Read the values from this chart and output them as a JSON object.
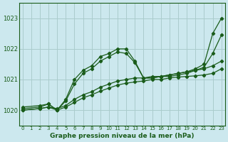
{
  "bg_color": "#cce8ee",
  "grid_color": "#aacccc",
  "line_color": "#1a5c1a",
  "xlabel": "Graphe pression niveau de la mer (hPa)",
  "xlim": [
    -0.4,
    23.4
  ],
  "ylim": [
    1019.5,
    1023.5
  ],
  "yticks": [
    1020,
    1021,
    1022,
    1023
  ],
  "xticks": [
    0,
    1,
    2,
    3,
    4,
    5,
    6,
    7,
    8,
    9,
    10,
    11,
    12,
    13,
    14,
    15,
    16,
    17,
    18,
    19,
    20,
    21,
    22,
    23
  ],
  "series": [
    {
      "x": [
        0,
        2,
        3,
        4,
        5,
        6,
        7,
        8,
        9,
        10,
        11,
        12,
        13,
        14,
        15,
        16,
        17,
        18,
        19,
        20,
        21,
        22,
        23
      ],
      "y": [
        1020.1,
        1020.15,
        1020.2,
        1020.0,
        1020.35,
        1021.0,
        1021.3,
        1021.45,
        1021.75,
        1021.85,
        1022.0,
        1022.0,
        1021.6,
        1021.05,
        1021.05,
        1021.1,
        1021.15,
        1021.2,
        1021.25,
        1021.35,
        1021.5,
        1022.5,
        1023.0
      ]
    },
    {
      "x": [
        0,
        2,
        3,
        4,
        5,
        6,
        7,
        8,
        9,
        10,
        11,
        12,
        13,
        14,
        15,
        16,
        17,
        18,
        19,
        20,
        21,
        22,
        23
      ],
      "y": [
        1020.05,
        1020.1,
        1020.2,
        1020.0,
        1020.3,
        1020.85,
        1021.2,
        1021.35,
        1021.6,
        1021.75,
        1021.9,
        1021.85,
        1021.55,
        1021.05,
        1021.05,
        1021.1,
        1021.1,
        1021.15,
        1021.2,
        1021.3,
        1021.4,
        1021.85,
        1022.45
      ]
    },
    {
      "x": [
        0,
        2,
        3,
        4,
        5,
        6,
        7,
        8,
        9,
        10,
        11,
        12,
        13,
        14,
        15,
        16,
        17,
        18,
        19,
        20,
        21,
        22,
        23
      ],
      "y": [
        1020.0,
        1020.05,
        1020.1,
        1020.05,
        1020.15,
        1020.35,
        1020.5,
        1020.6,
        1020.75,
        1020.85,
        1020.95,
        1021.0,
        1021.05,
        1021.05,
        1021.1,
        1021.1,
        1021.15,
        1021.2,
        1021.25,
        1021.3,
        1021.35,
        1021.45,
        1021.6
      ]
    },
    {
      "x": [
        0,
        2,
        3,
        4,
        5,
        6,
        7,
        8,
        9,
        10,
        11,
        12,
        13,
        14,
        15,
        16,
        17,
        18,
        19,
        20,
        21,
        22,
        23
      ],
      "y": [
        1020.0,
        1020.05,
        1020.1,
        1020.0,
        1020.1,
        1020.25,
        1020.4,
        1020.5,
        1020.62,
        1020.72,
        1020.82,
        1020.88,
        1020.92,
        1020.95,
        1021.0,
        1021.0,
        1021.05,
        1021.08,
        1021.1,
        1021.12,
        1021.15,
        1021.2,
        1021.35
      ]
    }
  ]
}
